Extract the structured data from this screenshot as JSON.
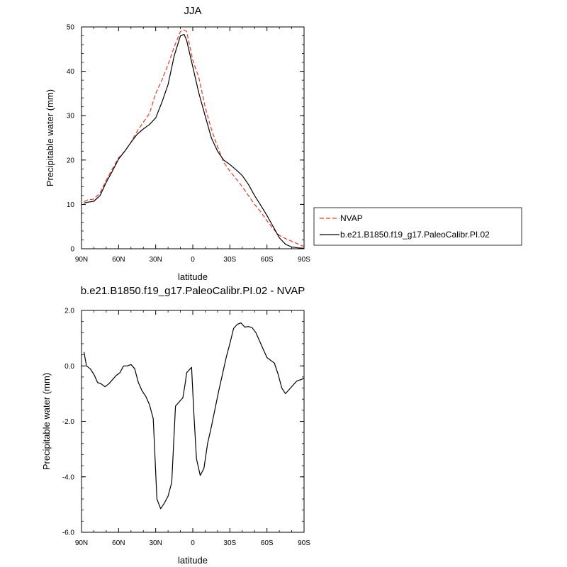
{
  "chart_data": [
    {
      "type": "line",
      "title": "JJA",
      "xlabel": "latitude",
      "ylabel": "Precipitable water (mm)",
      "xlim": [
        90,
        -90
      ],
      "ylim": [
        0,
        50
      ],
      "xticks": [
        90,
        60,
        30,
        0,
        -30,
        -60,
        -90
      ],
      "xtick_labels": [
        "90N",
        "60N",
        "30N",
        "0",
        "30S",
        "60S",
        "90S"
      ],
      "yticks": [
        0,
        10,
        20,
        30,
        40,
        50
      ],
      "ytick_labels": [
        "0",
        "10",
        "20",
        "30",
        "40",
        "50"
      ],
      "legend_position": "right",
      "series": [
        {
          "name": "NVAP",
          "color": "#e8392a",
          "dash": "dashed",
          "x": [
            88,
            85,
            80,
            75,
            70,
            65,
            60,
            55,
            50,
            45,
            40,
            35,
            30,
            25,
            20,
            15,
            10,
            7,
            5,
            0,
            -5,
            -10,
            -15,
            -20,
            -25,
            -30,
            -35,
            -40,
            -45,
            -50,
            -55,
            -60,
            -65,
            -70,
            -75,
            -80,
            -85,
            -90
          ],
          "y": [
            10.6,
            11,
            11.2,
            12.6,
            15.5,
            18,
            20.5,
            22,
            24,
            26.5,
            28.5,
            30.5,
            35,
            38,
            41.5,
            45.5,
            49,
            49.3,
            49,
            42.5,
            38.5,
            32,
            27,
            23,
            19.5,
            17.5,
            15.8,
            14,
            12,
            10,
            8.3,
            6.3,
            4.5,
            3,
            2.3,
            1.7,
            1.1,
            0.5
          ]
        },
        {
          "name": "b.e21.B1850.f19_g17.PaleoCalibr.PI.02",
          "color": "#000000",
          "dash": "solid",
          "x": [
            88,
            85,
            80,
            75,
            70,
            65,
            60,
            55,
            50,
            45,
            40,
            35,
            30,
            25,
            20,
            15,
            10,
            7,
            5,
            0,
            -5,
            -10,
            -15,
            -20,
            -25,
            -30,
            -35,
            -40,
            -45,
            -50,
            -55,
            -60,
            -65,
            -70,
            -75,
            -80,
            -85,
            -90
          ],
          "y": [
            10.3,
            10.5,
            10.7,
            12,
            15,
            17.5,
            20.2,
            22,
            24,
            25.8,
            27,
            28,
            29.5,
            33,
            37,
            43.5,
            48,
            48.3,
            47,
            41,
            35,
            30,
            25,
            22,
            20,
            19,
            17.8,
            16.5,
            14.5,
            12,
            9.8,
            7.5,
            5,
            2.5,
            1,
            0.4,
            0.2,
            0.1
          ]
        }
      ]
    },
    {
      "type": "line",
      "title": "b.e21.B1850.f19_g17.PaleoCalibr.PI.02 - NVAP",
      "xlabel": "latitude",
      "ylabel": "Precipitable water (mm)",
      "xlim": [
        90,
        -90
      ],
      "ylim": [
        -6,
        2
      ],
      "xticks": [
        90,
        60,
        30,
        0,
        -30,
        -60,
        -90
      ],
      "xtick_labels": [
        "90N",
        "60N",
        "30N",
        "0",
        "30S",
        "60S",
        "90S"
      ],
      "yticks": [
        2,
        0,
        -2,
        -4,
        -6
      ],
      "ytick_labels": [
        "2.0",
        "0.0",
        "-2.0",
        "-4.0",
        "-6.0"
      ],
      "series": [
        {
          "color": "#000000",
          "dash": "solid",
          "x": [
            88,
            86,
            83,
            80,
            77,
            74,
            71,
            68,
            65,
            62,
            59,
            56,
            53,
            50,
            47,
            44,
            41,
            38,
            35,
            32,
            29,
            26,
            23,
            20,
            17,
            14,
            11,
            8,
            6,
            5,
            4,
            1,
            -1,
            -3,
            -6,
            -9,
            -12,
            -15,
            -18,
            -21,
            -24,
            -27,
            -30,
            -33,
            -36,
            -39,
            -42,
            -45,
            -48,
            -51,
            -54,
            -57,
            -60,
            -63,
            -66,
            -69,
            -72,
            -75,
            -78,
            -81,
            -84,
            -87,
            -90
          ],
          "y": [
            0.5,
            0,
            -0.1,
            -0.3,
            -0.6,
            -0.65,
            -0.75,
            -0.65,
            -0.5,
            -0.35,
            -0.25,
            0,
            0,
            0.05,
            -0.1,
            -0.6,
            -0.9,
            -1.1,
            -1.4,
            -1.9,
            -4.8,
            -5.15,
            -4.95,
            -4.7,
            -4.2,
            -1.45,
            -1.3,
            -1.15,
            -0.6,
            -0.25,
            -0.2,
            -0.05,
            -1.8,
            -3.35,
            -3.95,
            -3.7,
            -2.8,
            -2.2,
            -1.55,
            -0.9,
            -0.3,
            0.3,
            0.8,
            1.35,
            1.5,
            1.55,
            1.4,
            1.42,
            1.38,
            1.2,
            0.9,
            0.6,
            0.3,
            0.2,
            0.1,
            -0.3,
            -0.8,
            -1,
            -0.85,
            -0.7,
            -0.55,
            -0.5,
            -0.45
          ]
        }
      ]
    }
  ]
}
